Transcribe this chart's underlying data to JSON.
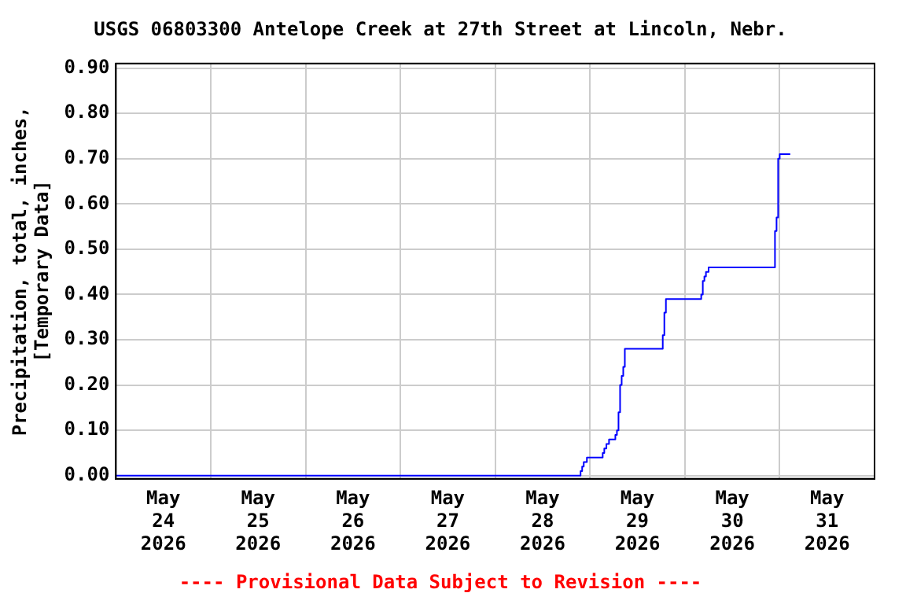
{
  "chart_data": {
    "type": "step",
    "title": "USGS 06803300 Antelope Creek at 27th Street at Lincoln, Nebr.",
    "ylabel": "Precipitation, total, inches,\n[Temporary Data]",
    "annotations": [
      "---- Provisional Data Subject to Revision ----"
    ],
    "series": [
      {
        "color": "#0000ff",
        "x": [
          "2026-05-24T00:00",
          "2026-05-28T21:36",
          "2026-05-28T22:00",
          "2026-05-28T22:24",
          "2026-05-28T23:12",
          "2026-05-29T03:12",
          "2026-05-29T03:36",
          "2026-05-29T04:08",
          "2026-05-29T04:48",
          "2026-05-29T06:24",
          "2026-05-29T06:48",
          "2026-05-29T07:12",
          "2026-05-29T07:36",
          "2026-05-29T08:00",
          "2026-05-29T08:24",
          "2026-05-29T08:48",
          "2026-05-29T18:24",
          "2026-05-29T18:48",
          "2026-05-29T19:12",
          "2026-05-30T04:08",
          "2026-05-30T04:32",
          "2026-05-30T04:56",
          "2026-05-30T05:20",
          "2026-05-30T06:00",
          "2026-05-30T22:48",
          "2026-05-30T23:12",
          "2026-05-30T23:36",
          "2026-05-31T00:00",
          "2026-05-31T02:40"
        ],
        "values": [
          0,
          0.01,
          0.02,
          0.03,
          0.04,
          0.05,
          0.06,
          0.07,
          0.08,
          0.09,
          0.1,
          0.14,
          0.2,
          0.22,
          0.24,
          0.28,
          0.31,
          0.36,
          0.39,
          0.4,
          0.43,
          0.44,
          0.45,
          0.46,
          0.54,
          0.57,
          0.7,
          0.71,
          0.71
        ]
      }
    ],
    "xlim": [
      "2026-05-24",
      "2026-06-01"
    ],
    "xticks": [
      {
        "value": "2026-05-24T12:00",
        "label": "May\n24\n2026"
      },
      {
        "value": "2026-05-25T00:00",
        "label": null
      },
      {
        "value": "2026-05-25T12:00",
        "label": "May\n25\n2026"
      },
      {
        "value": "2026-05-26T00:00",
        "label": null
      },
      {
        "value": "2026-05-26T12:00",
        "label": "May\n26\n2026"
      },
      {
        "value": "2026-05-27T00:00",
        "label": null
      },
      {
        "value": "2026-05-27T12:00",
        "label": "May\n27\n2026"
      },
      {
        "value": "2026-05-28T00:00",
        "label": null
      },
      {
        "value": "2026-05-28T12:00",
        "label": "May\n28\n2026"
      },
      {
        "value": "2026-05-29T00:00",
        "label": null
      },
      {
        "value": "2026-05-29T12:00",
        "label": "May\n29\n2026"
      },
      {
        "value": "2026-05-30T00:00",
        "label": null
      },
      {
        "value": "2026-05-30T12:00",
        "label": "May\n30\n2026"
      },
      {
        "value": "2026-05-31T00:00",
        "label": null
      },
      {
        "value": "2026-05-31T12:00",
        "label": "May\n31\n2026"
      }
    ],
    "ylim": [
      -0.007,
      0.91
    ],
    "yticks": [
      {
        "value": 0,
        "label": "0.00"
      },
      {
        "value": 0.1,
        "label": "0.10"
      },
      {
        "value": 0.2,
        "label": "0.20"
      },
      {
        "value": 0.3,
        "label": "0.30"
      },
      {
        "value": 0.4,
        "label": "0.40"
      },
      {
        "value": 0.5,
        "label": "0.50"
      },
      {
        "value": 0.6,
        "label": "0.60"
      },
      {
        "value": 0.7,
        "label": "0.70"
      },
      {
        "value": 0.8,
        "label": "0.80"
      },
      {
        "value": 0.9,
        "label": "0.90"
      }
    ],
    "grid": true,
    "legend": false,
    "marker": "none",
    "line_style": "solid"
  }
}
